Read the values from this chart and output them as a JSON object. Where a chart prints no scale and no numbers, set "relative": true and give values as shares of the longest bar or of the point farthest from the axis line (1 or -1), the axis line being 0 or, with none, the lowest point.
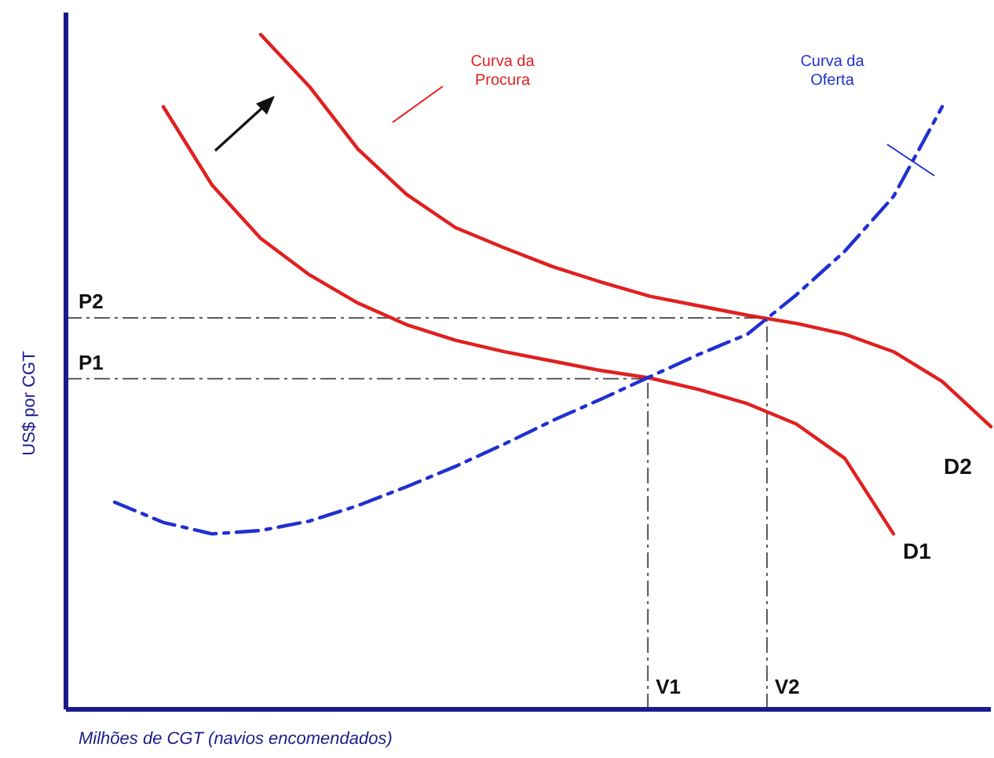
{
  "chart_data": {
    "type": "line",
    "relative": true,
    "xlabel": "Milhões de CGT (navios encomendados)",
    "ylabel": "US$ por CGT",
    "categories": [
      null,
      null,
      null,
      null,
      null,
      null,
      null,
      null,
      null,
      null,
      null,
      null,
      null,
      null,
      null,
      null,
      null,
      null,
      null,
      null
    ],
    "series": [
      {
        "name": "D1",
        "color": "#e02020",
        "line_style": "solid",
        "values": [
          null,
          null,
          0.893,
          0.777,
          0.698,
          0.644,
          0.602,
          0.57,
          0.547,
          0.53,
          0.516,
          0.502,
          0.491,
          0.474,
          0.453,
          0.423,
          0.372,
          0.26,
          null,
          null
        ]
      },
      {
        "name": "D2",
        "color": "#e02020",
        "line_style": "solid",
        "values": [
          null,
          null,
          null,
          null,
          1.0,
          0.923,
          0.83,
          0.763,
          0.714,
          0.684,
          0.656,
          0.633,
          0.612,
          0.598,
          0.584,
          0.572,
          0.556,
          0.53,
          0.486,
          0.419
        ]
      },
      {
        "name": "Curva da Oferta",
        "color": "#2030d0",
        "line_style": "dashed",
        "values": [
          null,
          0.307,
          0.277,
          0.26,
          0.265,
          0.279,
          0.302,
          0.33,
          0.36,
          0.393,
          0.428,
          0.46,
          0.493,
          0.526,
          0.556,
          0.614,
          0.679,
          0.76,
          0.893,
          null
        ]
      }
    ],
    "grid": false,
    "marker": "none",
    "ref_lines": [
      {
        "axis": "y",
        "value": 0.49,
        "label": "P1"
      },
      {
        "axis": "y",
        "value": 0.58,
        "label": "P2"
      }
    ],
    "annotations": [
      "Curva da Procura",
      "V1",
      "V2"
    ]
  }
}
